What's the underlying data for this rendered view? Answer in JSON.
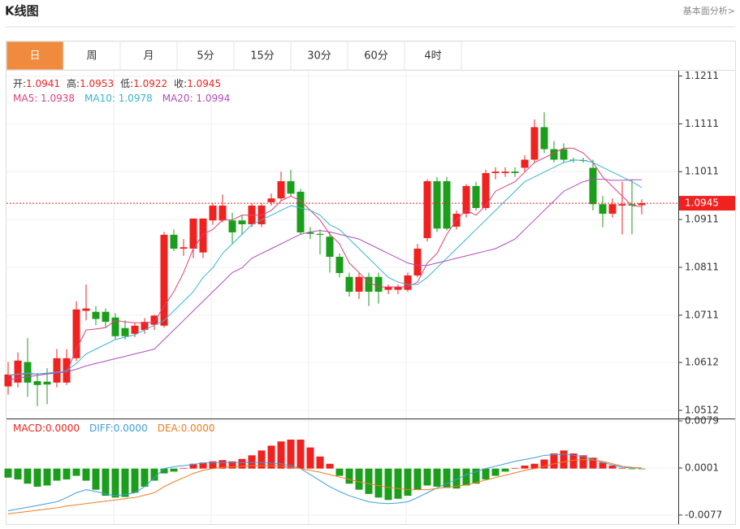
{
  "header": {
    "title": "K线图",
    "link": "基本面分析>"
  },
  "tabs": {
    "items": [
      "日",
      "周",
      "月",
      "5分",
      "15分",
      "30分",
      "60分",
      "4时"
    ],
    "active": 0
  },
  "chart_data": [
    {
      "type": "candlestick",
      "info": [
        {
          "label": "开:",
          "value": "1.0941"
        },
        {
          "label": "高:",
          "value": "1.0953"
        },
        {
          "label": "低:",
          "value": "1.0922"
        },
        {
          "label": "收:",
          "value": "1.0945"
        }
      ],
      "open": [
        1.0562,
        1.057,
        1.0613,
        1.0573,
        1.0572,
        1.057,
        1.057,
        1.0621,
        1.072,
        1.0718,
        1.0718,
        1.0706,
        1.0684,
        1.0672,
        1.068,
        1.0691,
        1.0689,
        1.0879,
        1.085,
        1.085,
        1.0842,
        1.0909,
        1.0909,
        1.0909,
        1.0909,
        1.0901,
        1.0901,
        1.0947,
        1.0955,
        1.0991,
        1.0969,
        1.0884,
        1.0881,
        1.0875,
        1.0833,
        1.0791,
        1.076,
        1.0791,
        1.0791,
        1.0764,
        1.0764,
        1.0764,
        1.0794,
        1.0872,
        1.0991,
        1.0991,
        1.0896,
        1.0923,
        1.0981,
        1.0935,
        1.1008,
        1.1008,
        1.1011,
        1.1019,
        1.1036,
        1.1104,
        1.1058,
        1.1058,
        1.1036,
        1.1035,
        1.1019,
        1.0943,
        1.0923,
        1.094,
        1.0943,
        1.0941
      ],
      "high": [
        1.0613,
        1.0633,
        1.0663,
        1.059,
        1.06,
        1.064,
        1.064,
        1.074,
        1.0775,
        1.073,
        1.0725,
        1.0715,
        1.07,
        1.0695,
        1.0705,
        1.0712,
        1.0885,
        1.089,
        1.087,
        1.0913,
        1.0913,
        1.0945,
        1.0963,
        1.0925,
        1.092,
        1.0945,
        1.0945,
        1.0965,
        1.1011,
        1.1015,
        1.0975,
        1.0895,
        1.089,
        1.0885,
        1.084,
        1.08,
        1.08,
        1.08,
        1.08,
        1.0775,
        1.0775,
        1.08,
        1.086,
        1.0995,
        1.1,
        1.1,
        1.093,
        1.0985,
        1.099,
        1.1015,
        1.102,
        1.102,
        1.102,
        1.1045,
        1.112,
        1.1135,
        1.1075,
        1.107,
        1.104,
        1.104,
        1.1036,
        1.096,
        1.0955,
        1.099,
        1.0995,
        1.0953
      ],
      "low": [
        1.0545,
        1.056,
        1.054,
        1.0521,
        1.0525,
        1.056,
        1.0565,
        1.0615,
        1.07,
        1.069,
        1.0685,
        1.066,
        1.066,
        1.0665,
        1.0672,
        1.068,
        1.0685,
        1.0845,
        1.0835,
        1.083,
        1.083,
        1.09,
        1.0905,
        1.086,
        1.088,
        1.0895,
        1.0895,
        1.094,
        1.095,
        1.096,
        1.088,
        1.087,
        1.0838,
        1.08,
        1.079,
        1.075,
        1.0745,
        1.073,
        1.0735,
        1.0755,
        1.0755,
        1.076,
        1.079,
        1.0865,
        1.0885,
        1.0888,
        1.089,
        1.0915,
        1.093,
        1.093,
        1.0995,
        1.1,
        1.1,
        1.101,
        1.103,
        1.105,
        1.103,
        1.103,
        1.103,
        1.103,
        1.093,
        1.0895,
        1.0915,
        1.088,
        1.088,
        1.0922
      ],
      "close": [
        1.0587,
        1.0616,
        1.057,
        1.0565,
        1.0566,
        1.0621,
        1.0621,
        1.0723,
        1.0725,
        1.0703,
        1.0697,
        1.0667,
        1.0667,
        1.0689,
        1.0697,
        1.071,
        1.0879,
        1.085,
        1.0853,
        1.0913,
        1.0913,
        1.094,
        1.094,
        1.0884,
        1.0901,
        1.094,
        1.094,
        1.0955,
        1.0991,
        1.0965,
        1.0884,
        1.0881,
        1.0879,
        1.0833,
        1.0799,
        1.076,
        1.0791,
        1.076,
        1.076,
        1.077,
        1.077,
        1.0794,
        1.085,
        1.0991,
        1.0892,
        1.0892,
        1.0923,
        1.0981,
        1.0935,
        1.1008,
        1.1011,
        1.1011,
        1.1008,
        1.1036,
        1.1104,
        1.1058,
        1.1036,
        1.1036,
        1.1035,
        1.1034,
        1.0943,
        1.0923,
        1.0943,
        1.0943,
        1.094,
        1.0945
      ],
      "series": [
        {
          "legend": "MA5: 1.0938",
          "color": "#e0407a",
          "values": [
            1.0585,
            1.0587,
            1.0588,
            1.0588,
            1.0589,
            1.059,
            1.0592,
            1.064,
            1.068,
            1.0682,
            1.0685,
            1.07,
            1.0697,
            1.0695,
            1.0695,
            1.0697,
            1.073,
            1.076,
            1.08,
            1.085,
            1.088,
            1.089,
            1.091,
            1.091,
            1.092,
            1.092,
            1.092,
            1.093,
            1.095,
            1.096,
            1.095,
            1.093,
            1.091,
            1.088,
            1.086,
            1.082,
            1.08,
            1.078,
            1.077,
            1.077,
            1.077,
            1.077,
            1.078,
            1.082,
            1.084,
            1.088,
            1.091,
            1.093,
            1.092,
            1.094,
            1.097,
            1.098,
            1.099,
            1.101,
            1.103,
            1.104,
            1.105,
            1.106,
            1.106,
            1.105,
            1.103,
            1.1,
            1.098,
            1.096,
            1.094,
            1.0938
          ]
        },
        {
          "legend": "MA10: 1.0978",
          "color": "#35b6d2",
          "values": [
            1.0585,
            1.0588,
            1.059,
            1.0588,
            1.059,
            1.0592,
            1.0595,
            1.061,
            1.063,
            1.064,
            1.065,
            1.066,
            1.0665,
            1.067,
            1.068,
            1.069,
            1.07,
            1.072,
            1.074,
            1.076,
            1.079,
            1.081,
            1.084,
            1.086,
            1.088,
            1.09,
            1.091,
            1.092,
            1.093,
            1.094,
            1.0935,
            1.093,
            1.092,
            1.09,
            1.089,
            1.087,
            1.085,
            1.083,
            1.081,
            1.079,
            1.078,
            1.0775,
            1.0775,
            1.079,
            1.081,
            1.083,
            1.085,
            1.087,
            1.089,
            1.091,
            1.093,
            1.095,
            1.097,
            1.099,
            1.1,
            1.101,
            1.102,
            1.103,
            1.1035,
            1.1035,
            1.103,
            1.102,
            1.101,
            1.1,
            1.099,
            1.0978
          ]
        },
        {
          "legend": "MA20: 1.0994",
          "color": "#b04cbc",
          "values": [
            1.0575,
            1.058,
            1.0582,
            1.0585,
            1.0588,
            1.059,
            1.0592,
            1.0598,
            1.0605,
            1.061,
            1.0615,
            1.062,
            1.0625,
            1.063,
            1.0635,
            1.064,
            1.066,
            1.068,
            1.07,
            1.072,
            1.074,
            1.076,
            1.078,
            1.08,
            1.081,
            1.083,
            1.084,
            1.085,
            1.086,
            1.087,
            1.088,
            1.0885,
            1.0888,
            1.0885,
            1.088,
            1.0875,
            1.087,
            1.086,
            1.085,
            1.084,
            1.083,
            1.082,
            1.0815,
            1.0815,
            1.082,
            1.0825,
            1.083,
            1.0835,
            1.084,
            1.0845,
            1.085,
            1.086,
            1.087,
            1.089,
            1.091,
            1.093,
            1.095,
            1.097,
            1.098,
            1.099,
            1.0995,
            1.0995,
            1.0993,
            1.0993,
            1.0994,
            1.0994
          ]
        }
      ],
      "last_price": 1.0945,
      "up_color": "#f0221f",
      "down_color": "#1b9e1b",
      "ylim": [
        1.0495,
        1.1222
      ],
      "yticks": [
        1.1211,
        1.1111,
        1.1011,
        1.0911,
        1.0811,
        1.0711,
        1.0612,
        1.0512
      ]
    },
    {
      "type": "macd",
      "series": [
        {
          "legend": "MACD:0.0000",
          "color": "#f0221f",
          "down_color": "#1b9e1b",
          "values": [
            -0.0015,
            -0.0018,
            -0.0025,
            -0.003,
            -0.0028,
            -0.002,
            -0.0018,
            -0.0012,
            -0.002,
            -0.0035,
            -0.0045,
            -0.0048,
            -0.0047,
            -0.004,
            -0.003,
            -0.002,
            -0.0008,
            -0.0005,
            0.0001,
            0.0008,
            0.001,
            0.0012,
            0.0014,
            0.0012,
            0.0016,
            0.0022,
            0.003,
            0.0038,
            0.0045,
            0.0048,
            0.0048,
            0.0035,
            0.002,
            0.0008,
            -0.0012,
            -0.0025,
            -0.0035,
            -0.0042,
            -0.0048,
            -0.0052,
            -0.005,
            -0.0045,
            -0.0035,
            -0.0028,
            -0.003,
            -0.0032,
            -0.0033,
            -0.0028,
            -0.0025,
            -0.0018,
            -0.0012,
            -0.0005,
            0.0001,
            0.0005,
            0.0008,
            0.0015,
            0.0025,
            0.003,
            0.0025,
            0.0022,
            0.0018,
            0.001,
            0.0005,
            0.0001,
            -0.0001,
            -0.0001
          ]
        },
        {
          "legend": "DIFF:0.0000",
          "color": "#3d9ede",
          "values": [
            -0.007,
            -0.0067,
            -0.0064,
            -0.0061,
            -0.0058,
            -0.0055,
            -0.0048,
            -0.004,
            -0.0035,
            -0.0038,
            -0.0042,
            -0.0045,
            -0.0043,
            -0.004,
            -0.003,
            -0.0015,
            0.0,
            0.0003,
            0.0005,
            0.0007,
            0.0009,
            0.001,
            0.001,
            0.001,
            0.001,
            0.001,
            0.001,
            0.0009,
            0.0008,
            0.0005,
            0.0,
            -0.001,
            -0.002,
            -0.003,
            -0.0038,
            -0.0045,
            -0.005,
            -0.0055,
            -0.0057,
            -0.0058,
            -0.0057,
            -0.0055,
            -0.0048,
            -0.004,
            -0.0032,
            -0.0025,
            -0.0018,
            -0.001,
            -0.0005,
            0.0,
            0.0004,
            0.0008,
            0.0012,
            0.0015,
            0.0018,
            0.0022,
            0.0023,
            0.0024,
            0.0022,
            0.002,
            0.0015,
            0.001,
            0.0006,
            0.0002,
            0.0001,
            0.0001
          ]
        },
        {
          "legend": "DEA:0.0000",
          "color": "#f07c20",
          "values": [
            -0.0075,
            -0.0073,
            -0.0071,
            -0.0069,
            -0.0067,
            -0.0065,
            -0.0062,
            -0.006,
            -0.0058,
            -0.0056,
            -0.0054,
            -0.0052,
            -0.005,
            -0.0048,
            -0.0044,
            -0.004,
            -0.003,
            -0.0022,
            -0.0015,
            -0.0008,
            -0.0003,
            0.0,
            0.0002,
            0.0003,
            0.0004,
            0.0005,
            0.0005,
            0.0005,
            0.0004,
            0.0002,
            0.0,
            -0.0003,
            -0.0006,
            -0.001,
            -0.0014,
            -0.0018,
            -0.0022,
            -0.0025,
            -0.0028,
            -0.0031,
            -0.0033,
            -0.0035,
            -0.0035,
            -0.0035,
            -0.0033,
            -0.0031,
            -0.0029,
            -0.0027,
            -0.0023,
            -0.0019,
            -0.0015,
            -0.0011,
            -0.0007,
            -0.0003,
            0.0,
            0.0004,
            0.0008,
            0.0011,
            0.0014,
            0.0015,
            0.0014,
            0.0012,
            0.0008,
            0.0004,
            0.0002,
            0.0001
          ]
        }
      ],
      "ylim": [
        -0.0092,
        0.0083
      ],
      "yticks": [
        0.0079,
        0.0001,
        -0.0077
      ]
    }
  ]
}
